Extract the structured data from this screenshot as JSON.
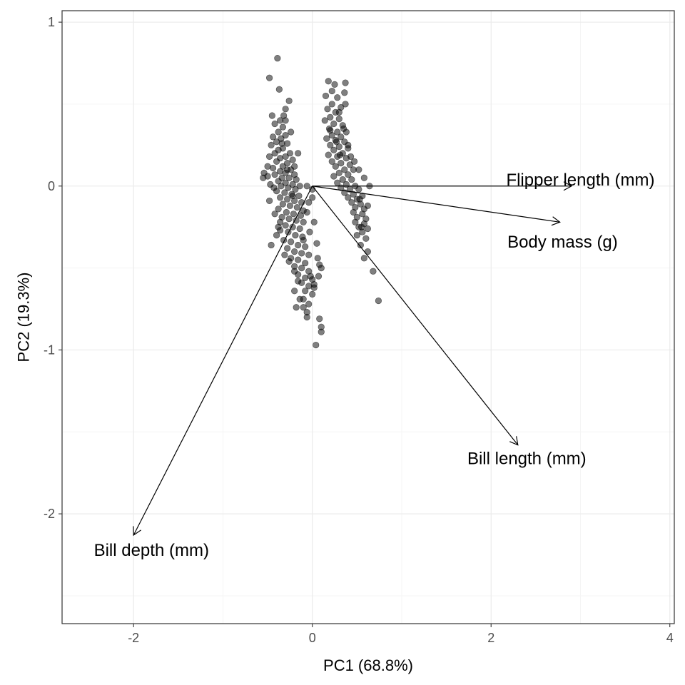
{
  "chart_data": {
    "type": "scatter",
    "title": "",
    "xlabel": "PC1 (68.8%)",
    "ylabel": "PC2 (19.3%)",
    "xlim": [
      -2.8,
      4.05
    ],
    "ylim": [
      -2.67,
      1.07
    ],
    "x_ticks": [
      -2,
      0,
      2,
      4
    ],
    "x_tick_labels": [
      "-2",
      "0",
      "2",
      "4"
    ],
    "y_ticks": [
      -2,
      -1,
      0,
      1
    ],
    "y_tick_labels": [
      "-2",
      "-1",
      "0",
      "1"
    ],
    "grid": true,
    "legend": "none",
    "colors": {
      "points": "#000000",
      "point_opacity": 0.5,
      "arrows": "#000000",
      "grid_major": "#ebebeb",
      "grid_minor": "#f5f5f5",
      "panel_border": "#333333"
    },
    "loadings": [
      {
        "label": "Flipper length (mm)",
        "x": 2.9,
        "y": 0.0,
        "label_x": 3.0,
        "label_y": 0.04
      },
      {
        "label": "Body mass (g)",
        "x": 2.77,
        "y": -0.22,
        "label_x": 2.8,
        "label_y": -0.34
      },
      {
        "label": "Bill length (mm)",
        "x": 2.3,
        "y": -1.58,
        "label_x": 2.4,
        "label_y": -1.66
      },
      {
        "label": "Bill depth (mm)",
        "x": -2.0,
        "y": -2.13,
        "label_x": -1.8,
        "label_y": -2.22
      }
    ],
    "points": [
      [
        -0.48,
        0.66
      ],
      [
        -0.39,
        0.78
      ],
      [
        -0.37,
        0.59
      ],
      [
        -0.3,
        0.47
      ],
      [
        -0.26,
        0.52
      ],
      [
        -0.32,
        0.43
      ],
      [
        -0.45,
        0.43
      ],
      [
        -0.36,
        0.4
      ],
      [
        -0.42,
        0.38
      ],
      [
        -0.33,
        0.36
      ],
      [
        -0.38,
        0.33
      ],
      [
        -0.3,
        0.31
      ],
      [
        -0.44,
        0.3
      ],
      [
        -0.35,
        0.29
      ],
      [
        -0.4,
        0.27
      ],
      [
        -0.28,
        0.26
      ],
      [
        -0.46,
        0.25
      ],
      [
        -0.33,
        0.23
      ],
      [
        -0.38,
        0.22
      ],
      [
        -0.25,
        0.2
      ],
      [
        -0.42,
        0.2
      ],
      [
        -0.3,
        0.18
      ],
      [
        -0.36,
        0.17
      ],
      [
        -0.22,
        0.16
      ],
      [
        -0.4,
        0.15
      ],
      [
        -0.28,
        0.14
      ],
      [
        -0.33,
        0.12
      ],
      [
        -0.44,
        0.11
      ],
      [
        -0.24,
        0.1
      ],
      [
        -0.36,
        0.09
      ],
      [
        -0.3,
        0.08
      ],
      [
        -0.2,
        0.07
      ],
      [
        -0.42,
        0.07
      ],
      [
        -0.34,
        0.05
      ],
      [
        -0.26,
        0.05
      ],
      [
        -0.18,
        0.04
      ],
      [
        -0.38,
        0.03
      ],
      [
        -0.3,
        0.02
      ],
      [
        -0.22,
        0.01
      ],
      [
        -0.14,
        0.0
      ],
      [
        -0.35,
        0.0
      ],
      [
        -0.27,
        -0.01
      ],
      [
        -0.19,
        -0.02
      ],
      [
        -0.4,
        -0.03
      ],
      [
        -0.31,
        -0.04
      ],
      [
        -0.23,
        -0.05
      ],
      [
        -0.15,
        -0.06
      ],
      [
        -0.36,
        -0.07
      ],
      [
        -0.28,
        -0.08
      ],
      [
        -0.2,
        -0.09
      ],
      [
        -0.12,
        -0.1
      ],
      [
        -0.33,
        -0.11
      ],
      [
        -0.25,
        -0.12
      ],
      [
        -0.17,
        -0.13
      ],
      [
        -0.38,
        -0.14
      ],
      [
        -0.29,
        -0.16
      ],
      [
        -0.21,
        -0.17
      ],
      [
        -0.13,
        -0.18
      ],
      [
        -0.34,
        -0.19
      ],
      [
        -0.26,
        -0.2
      ],
      [
        -0.18,
        -0.21
      ],
      [
        -0.1,
        -0.22
      ],
      [
        -0.3,
        -0.24
      ],
      [
        -0.22,
        -0.25
      ],
      [
        -0.14,
        -0.26
      ],
      [
        -0.36,
        -0.27
      ],
      [
        -0.27,
        -0.28
      ],
      [
        -0.19,
        -0.3
      ],
      [
        -0.11,
        -0.31
      ],
      [
        -0.32,
        -0.33
      ],
      [
        -0.24,
        -0.34
      ],
      [
        -0.16,
        -0.36
      ],
      [
        -0.08,
        -0.37
      ],
      [
        -0.28,
        -0.38
      ],
      [
        -0.2,
        -0.4
      ],
      [
        -0.12,
        -0.41
      ],
      [
        -0.04,
        -0.42
      ],
      [
        -0.24,
        -0.44
      ],
      [
        -0.16,
        -0.45
      ],
      [
        -0.08,
        -0.47
      ],
      [
        -0.2,
        -0.49
      ],
      [
        -0.12,
        -0.5
      ],
      [
        -0.04,
        -0.52
      ],
      [
        -0.16,
        -0.54
      ],
      [
        -0.08,
        -0.56
      ],
      [
        0.0,
        -0.57
      ],
      [
        -0.12,
        -0.59
      ],
      [
        -0.04,
        -0.61
      ],
      [
        -0.08,
        -0.64
      ],
      [
        0.0,
        -0.66
      ],
      [
        -0.1,
        -0.69
      ],
      [
        -0.04,
        -0.72
      ],
      [
        -0.18,
        -0.74
      ],
      [
        -0.06,
        -0.77
      ],
      [
        0.08,
        -0.81
      ],
      [
        0.1,
        -0.86
      ],
      [
        0.04,
        -0.97
      ],
      [
        0.1,
        -0.89
      ],
      [
        0.02,
        -0.62
      ],
      [
        0.07,
        -0.55
      ],
      [
        0.1,
        -0.5
      ],
      [
        -0.5,
        0.06
      ],
      [
        -0.54,
        0.08
      ],
      [
        -0.47,
        0.01
      ],
      [
        -0.55,
        0.05
      ],
      [
        -0.43,
        -0.01
      ],
      [
        -0.48,
        -0.09
      ],
      [
        -0.4,
        -0.3
      ],
      [
        -0.46,
        -0.36
      ],
      [
        -0.38,
        -0.25
      ],
      [
        -0.42,
        -0.17
      ],
      [
        -0.06,
        0.0
      ],
      [
        0.0,
        -0.02
      ],
      [
        -0.04,
        -0.1
      ],
      [
        0.05,
        -0.35
      ],
      [
        0.08,
        -0.48
      ],
      [
        -0.02,
        -0.55
      ],
      [
        -0.16,
        -0.58
      ],
      [
        -0.2,
        -0.64
      ],
      [
        -0.14,
        -0.69
      ],
      [
        -0.1,
        -0.74
      ],
      [
        -0.06,
        -0.8
      ],
      [
        0.02,
        -0.6
      ],
      [
        0.06,
        -0.44
      ],
      [
        -0.2,
        -0.52
      ],
      [
        -0.26,
        -0.46
      ],
      [
        -0.31,
        -0.42
      ],
      [
        -0.1,
        -0.33
      ],
      [
        -0.03,
        -0.28
      ],
      [
        0.02,
        -0.22
      ],
      [
        -0.06,
        -0.16
      ],
      [
        -0.3,
        0.4
      ],
      [
        -0.24,
        0.33
      ],
      [
        -0.34,
        0.26
      ],
      [
        -0.28,
        0.1
      ],
      [
        -0.2,
        0.12
      ],
      [
        -0.16,
        0.2
      ],
      [
        -0.22,
        -0.06
      ],
      [
        -0.1,
        -0.15
      ],
      [
        0.0,
        -0.07
      ],
      [
        -0.48,
        0.18
      ],
      [
        -0.5,
        0.12
      ],
      [
        -0.36,
        -0.22
      ],
      [
        0.22,
        0.58
      ],
      [
        0.18,
        0.64
      ],
      [
        0.25,
        0.62
      ],
      [
        0.37,
        0.63
      ],
      [
        0.15,
        0.55
      ],
      [
        0.28,
        0.54
      ],
      [
        0.22,
        0.5
      ],
      [
        0.32,
        0.48
      ],
      [
        0.17,
        0.47
      ],
      [
        0.26,
        0.45
      ],
      [
        0.37,
        0.5
      ],
      [
        0.2,
        0.42
      ],
      [
        0.3,
        0.41
      ],
      [
        0.14,
        0.4
      ],
      [
        0.24,
        0.38
      ],
      [
        0.34,
        0.37
      ],
      [
        0.19,
        0.35
      ],
      [
        0.28,
        0.33
      ],
      [
        0.38,
        0.33
      ],
      [
        0.22,
        0.31
      ],
      [
        0.32,
        0.3
      ],
      [
        0.16,
        0.29
      ],
      [
        0.26,
        0.28
      ],
      [
        0.36,
        0.27
      ],
      [
        0.2,
        0.25
      ],
      [
        0.3,
        0.24
      ],
      [
        0.4,
        0.23
      ],
      [
        0.24,
        0.22
      ],
      [
        0.34,
        0.2
      ],
      [
        0.18,
        0.19
      ],
      [
        0.28,
        0.18
      ],
      [
        0.38,
        0.17
      ],
      [
        0.22,
        0.15
      ],
      [
        0.32,
        0.14
      ],
      [
        0.42,
        0.13
      ],
      [
        0.26,
        0.12
      ],
      [
        0.36,
        0.1
      ],
      [
        0.46,
        0.1
      ],
      [
        0.3,
        0.08
      ],
      [
        0.4,
        0.07
      ],
      [
        0.24,
        0.06
      ],
      [
        0.34,
        0.04
      ],
      [
        0.44,
        0.04
      ],
      [
        0.28,
        0.02
      ],
      [
        0.38,
        0.01
      ],
      [
        0.48,
        0.0
      ],
      [
        0.32,
        -0.01
      ],
      [
        0.42,
        -0.02
      ],
      [
        0.52,
        -0.02
      ],
      [
        0.36,
        -0.04
      ],
      [
        0.46,
        -0.05
      ],
      [
        0.56,
        -0.06
      ],
      [
        0.4,
        -0.07
      ],
      [
        0.5,
        -0.08
      ],
      [
        0.44,
        -0.1
      ],
      [
        0.54,
        -0.11
      ],
      [
        0.48,
        -0.13
      ],
      [
        0.58,
        -0.14
      ],
      [
        0.46,
        -0.16
      ],
      [
        0.56,
        -0.17
      ],
      [
        0.5,
        -0.19
      ],
      [
        0.6,
        -0.2
      ],
      [
        0.48,
        -0.22
      ],
      [
        0.58,
        -0.23
      ],
      [
        0.52,
        -0.25
      ],
      [
        0.62,
        -0.26
      ],
      [
        0.56,
        -0.28
      ],
      [
        0.5,
        -0.3
      ],
      [
        0.6,
        -0.32
      ],
      [
        0.54,
        -0.36
      ],
      [
        0.62,
        -0.4
      ],
      [
        0.58,
        -0.44
      ],
      [
        0.55,
        -0.25
      ],
      [
        0.62,
        -0.12
      ],
      [
        0.64,
        0.0
      ],
      [
        0.58,
        0.05
      ],
      [
        0.52,
        0.1
      ],
      [
        0.47,
        0.15
      ],
      [
        0.43,
        0.18
      ],
      [
        0.4,
        0.25
      ],
      [
        0.35,
        0.35
      ],
      [
        0.3,
        0.45
      ],
      [
        0.68,
        -0.52
      ],
      [
        0.74,
        -0.7
      ],
      [
        0.53,
        -0.08
      ],
      [
        0.36,
        0.57
      ],
      [
        0.2,
        0.34
      ],
      [
        0.27,
        0.27
      ],
      [
        0.31,
        0.19
      ]
    ]
  }
}
